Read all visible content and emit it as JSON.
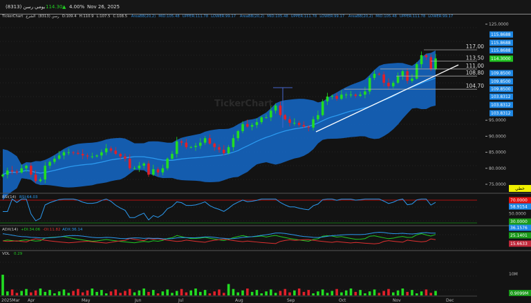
{
  "header": {
    "symbol": "رسن (8313)",
    "period": "يومي",
    "last_price": "114.30",
    "change_arrow": "▲",
    "change_pct": "4.00%",
    "date": "Nov 26, 2025"
  },
  "info_bar": {
    "app": "TickerChart",
    "symbol": "رسن (8313)",
    "exchange": "الشرع",
    "open": "O:109.4",
    "high": "H:110.9",
    "low": "L:107.5",
    "close": "C:108.5",
    "indicators": [
      {
        "name": "AreaBB(20,2)",
        "mid": "MID:105.48",
        "upper": "UPPER:111.78",
        "lower": "LOWER:99.17"
      },
      {
        "name": "AreaBB(20,2)",
        "mid": "MID:105.48",
        "upper": "UPPER:111.78",
        "lower": "LOWER:99.17"
      },
      {
        "name": "AreaBB(20,2)",
        "mid": "MID:105.48",
        "upper": "UPPER:111.78",
        "lower": "LOWER:99.17"
      }
    ]
  },
  "watermark": "TickerChart",
  "price_axis": {
    "ticks": [
      "125.0000",
      "95.0000",
      "90.0000",
      "85.0000",
      "80.0000",
      "75.0000"
    ],
    "tick_values": [
      125,
      95,
      90,
      85,
      80,
      75
    ],
    "badges": [
      {
        "text": "115.8688",
        "color": "#1e88e5"
      },
      {
        "text": "115.8688",
        "color": "#1e88e5"
      },
      {
        "text": "115.8688",
        "color": "#1e88e5"
      },
      {
        "text": "114.3000",
        "color": "#22c422"
      },
      {
        "text": "109.8500",
        "color": "#1e88e5"
      },
      {
        "text": "109.8500",
        "color": "#1e88e5"
      },
      {
        "text": "109.8500",
        "color": "#1e88e5"
      },
      {
        "text": "103.8312",
        "color": "#1e88e5"
      },
      {
        "text": "103.8312",
        "color": "#1e88e5"
      },
      {
        "text": "103.8312",
        "color": "#1e88e5"
      }
    ],
    "chart_type_badge": "خطي"
  },
  "levels": [
    {
      "label": "117.00",
      "value": 117.0
    },
    {
      "label": "113.50",
      "value": 113.5
    },
    {
      "label": "111.00",
      "value": 111.0
    },
    {
      "label": "108.80",
      "value": 108.8
    },
    {
      "label": "104.70",
      "value": 104.7
    }
  ],
  "rsi": {
    "title": "RSI(14)",
    "value": "RSI:64.03",
    "badges": [
      {
        "text": "70.0000",
        "color": "#e01010"
      },
      {
        "text": "58.9154",
        "color": "#1e88e5"
      },
      {
        "text": "30.0000",
        "color": "#1a9a1a"
      }
    ],
    "tick": "50.0000"
  },
  "adx": {
    "title": "ADX(14)",
    "plus_di": "+DI:34.06",
    "minus_di": "-DI:11.82",
    "adx": "ADX:36.14",
    "badges": [
      {
        "text": "36.1576",
        "color": "#1e88e5"
      },
      {
        "text": "25.1401",
        "color": "#1a9a1a"
      },
      {
        "text": "15.6633",
        "color": "#c0283a"
      }
    ]
  },
  "volume": {
    "title": "VOL",
    "value": "0.29",
    "tick": "10M",
    "badge": {
      "text": "0.9099M",
      "color": "#1a9a1a"
    }
  },
  "colors": {
    "up": "#22dd22",
    "down": "#e0202a",
    "band": "#1565c0",
    "mid": "#2b9af0",
    "trendline": "#ffffff"
  },
  "chart_data": {
    "type": "candlestick",
    "title": "",
    "x_ticks": [
      "2025Mar",
      "Apr",
      "May",
      "Jun",
      "Jul",
      "Aug",
      "Sep",
      "Oct",
      "Nov",
      "Dec"
    ],
    "ylim": [
      75,
      125
    ],
    "closes": [
      78,
      79.3,
      79,
      78.7,
      80,
      80.8,
      78,
      76,
      76.5,
      80.8,
      82,
      83,
      84,
      85,
      85,
      84.8,
      84.5,
      84,
      83.7,
      83.7,
      84,
      85,
      86.2,
      85.5,
      84.5,
      83.7,
      83,
      80,
      80,
      80.8,
      81.5,
      78,
      79.7,
      78.7,
      80,
      83,
      84.5,
      88.4,
      88,
      86.6,
      86.6,
      87,
      88,
      89.4,
      87.7,
      86.6,
      85.8,
      84.7,
      86.6,
      89.4,
      91.6,
      93.8,
      93,
      93.5,
      94.4,
      95.9,
      95.9,
      98,
      99.6,
      96.6,
      95.3,
      94.2,
      94.2,
      93.5,
      93,
      92.7,
      95.3,
      96.6,
      100.9,
      102.4,
      102.6,
      101.7,
      103,
      103,
      103,
      102.6,
      103,
      104,
      108.2,
      109.5,
      109.3,
      106.7,
      105.6,
      106.7,
      108.8,
      110.3,
      107.3,
      108,
      112.5,
      115.3,
      114.7,
      111,
      114.3
    ],
    "indicators": [
      "AreaBB(20,2)",
      "RSI(14)",
      "ADX(14)",
      "VOL"
    ]
  }
}
